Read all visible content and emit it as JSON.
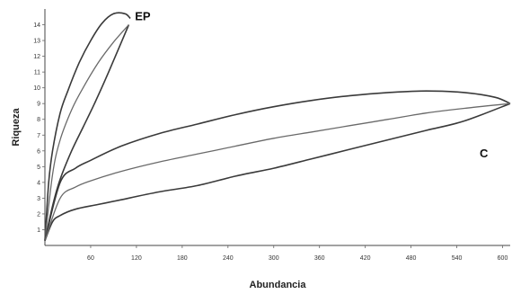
{
  "chart_data": {
    "type": "line",
    "xlabel": "Abundancia",
    "ylabel": "Riqueza",
    "xlim": [
      0,
      610
    ],
    "ylim": [
      0,
      15
    ],
    "x_ticks": [
      60,
      120,
      180,
      240,
      300,
      360,
      420,
      480,
      540,
      600
    ],
    "y_ticks": [
      1,
      2,
      3,
      4,
      5,
      6,
      7,
      8,
      9,
      10,
      11,
      12,
      13,
      14
    ],
    "grid": false,
    "series": [
      {
        "name": "EP",
        "label_near": {
          "x": 118,
          "y": 14.3
        },
        "upper_bound": {
          "x": [
            0,
            5,
            10,
            20,
            30,
            45,
            60,
            75,
            90,
            105,
            112
          ],
          "y": [
            0.3,
            4.0,
            6.0,
            8.4,
            9.8,
            11.6,
            13.0,
            14.1,
            14.7,
            14.7,
            14.4
          ]
        },
        "estimate": {
          "x": [
            0,
            10,
            20,
            35,
            50,
            70,
            90,
            110
          ],
          "y": [
            0.3,
            4.5,
            6.7,
            8.6,
            10.0,
            11.6,
            12.9,
            14.0
          ]
        },
        "lower_bound": {
          "x": [
            0,
            10,
            20,
            35,
            50,
            65,
            80,
            95,
            110
          ],
          "y": [
            0.3,
            2.5,
            4.2,
            6.0,
            7.5,
            9.0,
            10.6,
            12.3,
            14.0
          ]
        }
      },
      {
        "name": "C",
        "label_near": {
          "x": 570,
          "y": 5.6
        },
        "upper_bound": {
          "x": [
            0,
            20,
            40,
            60,
            100,
            150,
            200,
            250,
            300,
            350,
            400,
            450,
            500,
            550,
            590,
            610
          ],
          "y": [
            0.3,
            4.0,
            4.9,
            5.4,
            6.3,
            7.1,
            7.7,
            8.3,
            8.8,
            9.2,
            9.5,
            9.7,
            9.8,
            9.7,
            9.4,
            9.0
          ]
        },
        "estimate": {
          "x": [
            0,
            20,
            40,
            60,
            100,
            150,
            200,
            250,
            300,
            350,
            400,
            450,
            500,
            550,
            610
          ],
          "y": [
            0.3,
            3.0,
            3.7,
            4.1,
            4.7,
            5.3,
            5.8,
            6.3,
            6.8,
            7.2,
            7.6,
            8.0,
            8.4,
            8.7,
            9.0
          ]
        },
        "lower_bound": {
          "x": [
            0,
            10,
            20,
            40,
            70,
            100,
            150,
            200,
            250,
            300,
            350,
            400,
            450,
            500,
            550,
            610
          ],
          "y": [
            0.3,
            1.5,
            1.9,
            2.3,
            2.6,
            2.9,
            3.4,
            3.8,
            4.4,
            4.9,
            5.5,
            6.1,
            6.7,
            7.3,
            7.9,
            9.0
          ]
        }
      }
    ]
  }
}
